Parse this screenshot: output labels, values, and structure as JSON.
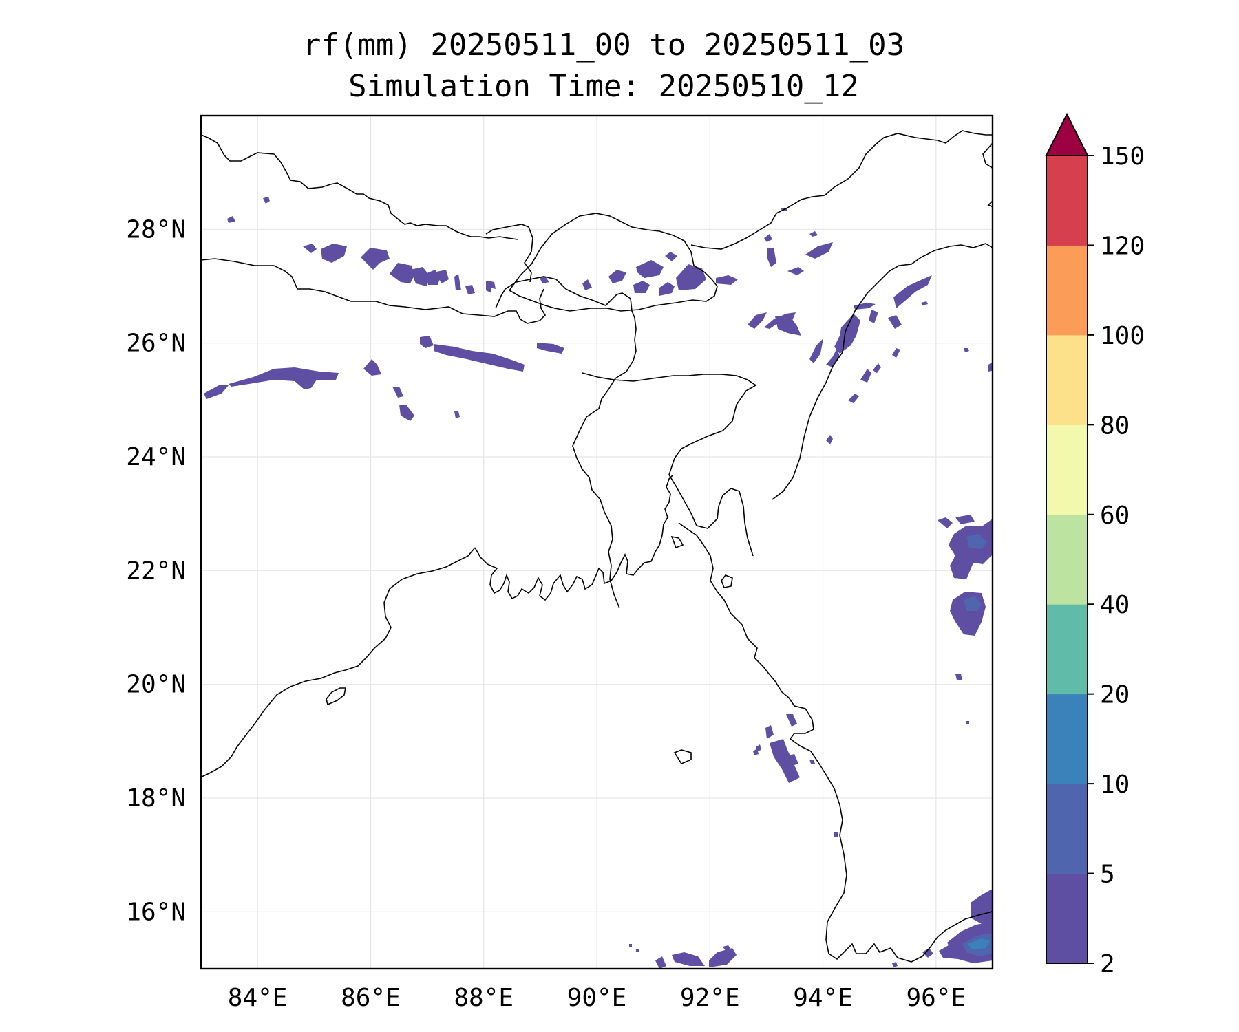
{
  "title": {
    "line1": "rf(mm) 20250511_00 to 20250511_03",
    "line2": "Simulation Time: 20250510_12"
  },
  "map": {
    "lon_range": [
      83.0,
      97.0
    ],
    "lat_range": [
      15.0,
      30.0
    ],
    "x_ticks": [
      {
        "value": 84,
        "label": "84°E"
      },
      {
        "value": 86,
        "label": "86°E"
      },
      {
        "value": 88,
        "label": "88°E"
      },
      {
        "value": 90,
        "label": "90°E"
      },
      {
        "value": 92,
        "label": "92°E"
      },
      {
        "value": 94,
        "label": "94°E"
      },
      {
        "value": 96,
        "label": "96°E"
      }
    ],
    "y_ticks": [
      {
        "value": 16,
        "label": "16°N"
      },
      {
        "value": 18,
        "label": "18°N"
      },
      {
        "value": 20,
        "label": "20°N"
      },
      {
        "value": 22,
        "label": "22°N"
      },
      {
        "value": 24,
        "label": "24°N"
      },
      {
        "value": 26,
        "label": "26°N"
      },
      {
        "value": 28,
        "label": "28°N"
      }
    ],
    "grid": true,
    "field": "rainfall accumulation (mm), filled contours",
    "regions_with_rain": [
      "Nepal hills / Himalayan foothills (light, 2-5 mm)",
      "Bihar / northern India plain (light, 2-5 mm)",
      "Bhutan and Arunachal Pradesh (light, 2-5 mm)",
      "Assam / Meghalaya / Nagaland (light, 2-5 mm)",
      "Western Myanmar coast near 19N (light, 2-5 mm)",
      "Eastern Myanmar near 22N (light, locally 5-10 mm)",
      "Southeast corner near 15-16N (light to 10-20 mm)",
      "Bay of Bengal near 15N (light)"
    ]
  },
  "colorbar": {
    "levels": [
      2,
      5,
      10,
      20,
      40,
      60,
      80,
      100,
      120,
      150
    ],
    "tick_labels": [
      "2",
      "5",
      "10",
      "20",
      "40",
      "60",
      "80",
      "100",
      "120",
      "150"
    ],
    "colors": [
      "#5e4fa2",
      "#4f66ae",
      "#3a82b9",
      "#60bba8",
      "#bde3a0",
      "#f3f9ac",
      "#fde08a",
      "#fb9d59",
      "#d6404e",
      "#9e0142"
    ],
    "extend": "max"
  }
}
